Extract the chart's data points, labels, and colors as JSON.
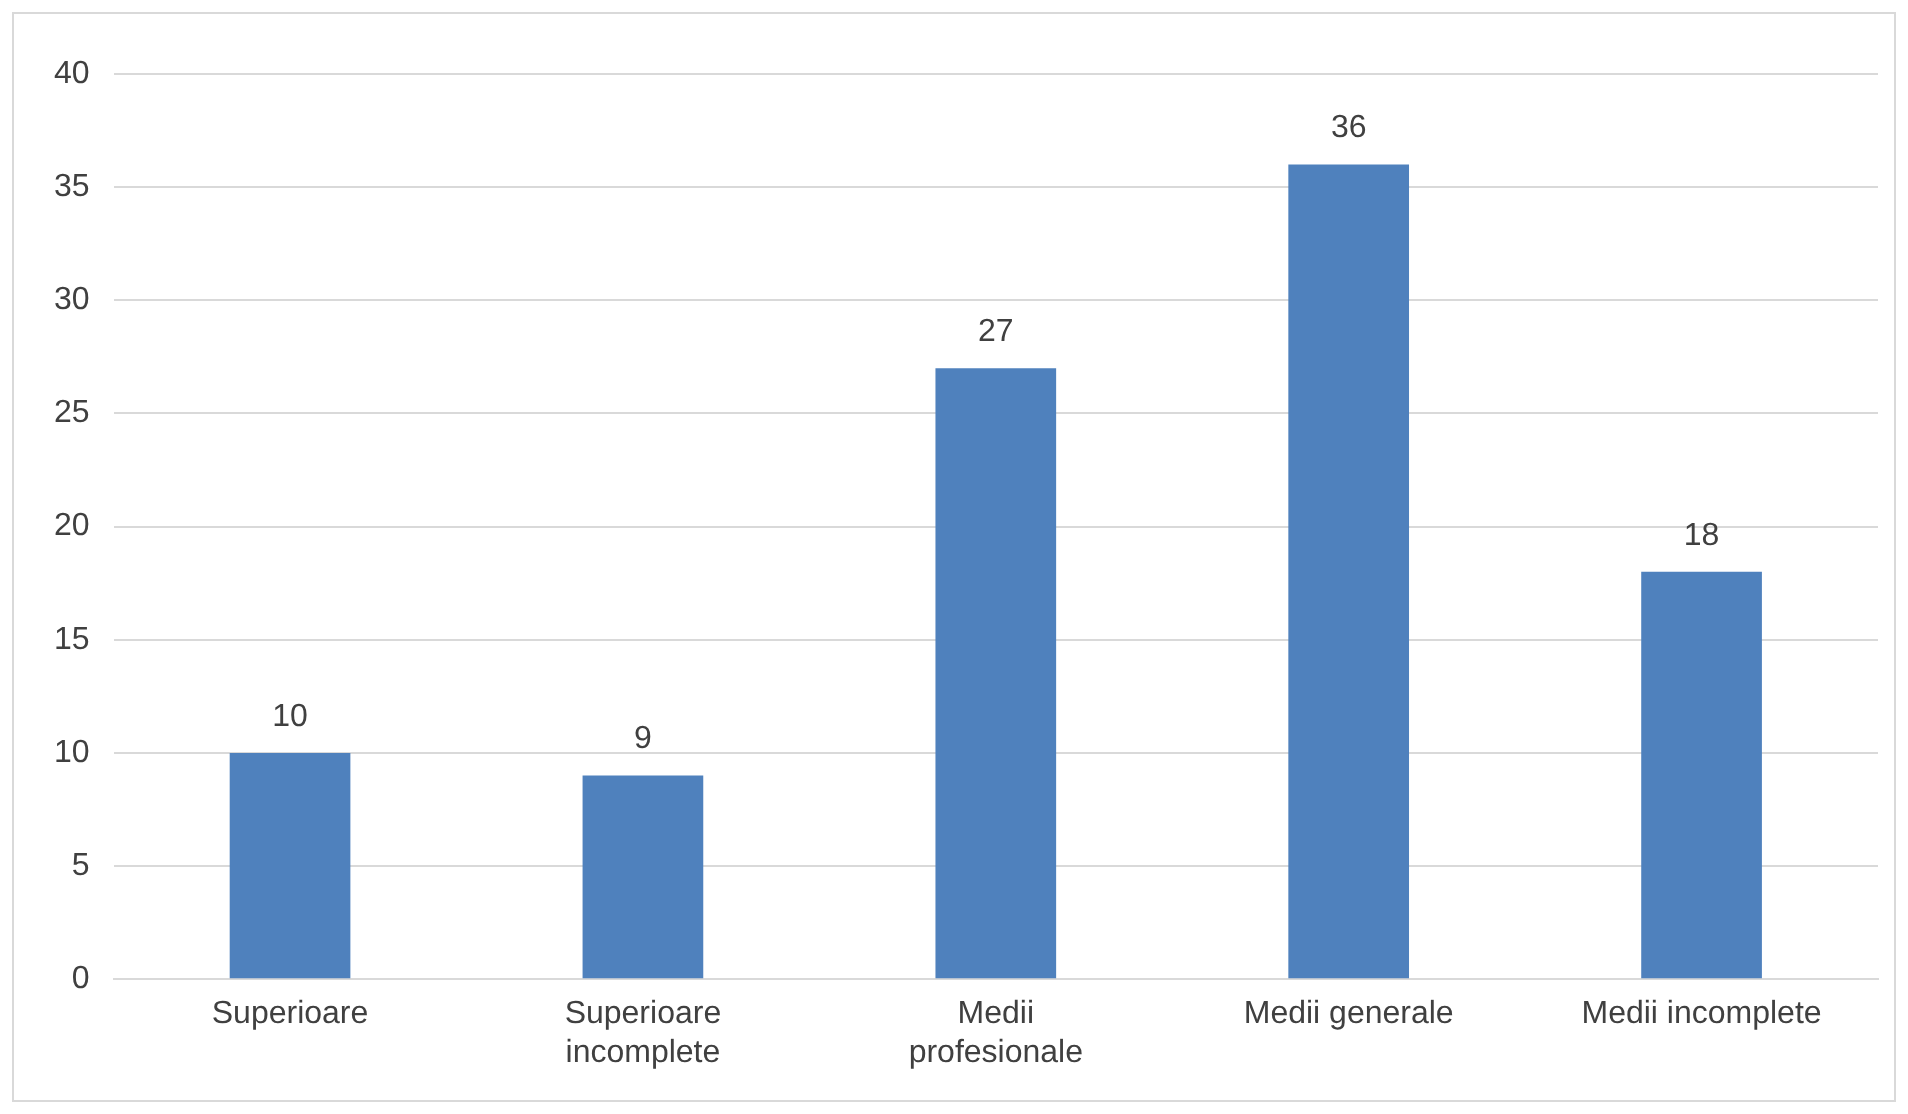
{
  "chart_data": {
    "type": "bar",
    "categories": [
      "Superioare",
      "Superioare incomplete",
      "Medii profesionale",
      "Medii generale",
      "Medii incomplete"
    ],
    "values": [
      10,
      9,
      27,
      36,
      18
    ],
    "color": "#4f81bd",
    "ylim": [
      0,
      40
    ],
    "yticks": [
      0,
      5,
      10,
      15,
      20,
      25,
      30,
      35,
      40
    ],
    "grid": "y",
    "data_labels": true,
    "legend": false
  }
}
